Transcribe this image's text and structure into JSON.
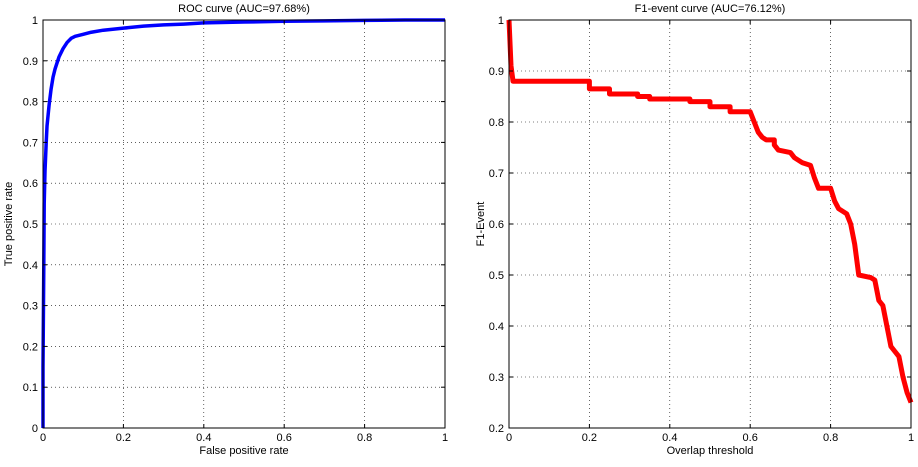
{
  "chart_data": [
    {
      "type": "line",
      "title": "ROC curve (AUC=97.68%)",
      "xlabel": "False positive rate",
      "ylabel": "True positive rate",
      "xlim": [
        0,
        1
      ],
      "ylim": [
        0,
        1
      ],
      "xticks": [
        0,
        0.2,
        0.4,
        0.6,
        0.8,
        1
      ],
      "xtick_labels": [
        "0",
        "0.2",
        "0.4",
        "0.6",
        "0.8",
        "1"
      ],
      "yticks": [
        0,
        0.1,
        0.2,
        0.3,
        0.4,
        0.5,
        0.6,
        0.7,
        0.8,
        0.9,
        1
      ],
      "ytick_labels": [
        "0",
        "0.1",
        "0.2",
        "0.3",
        "0.4",
        "0.5",
        "0.6",
        "0.7",
        "0.8",
        "0.9",
        "1"
      ],
      "grid": true,
      "series": [
        {
          "color": "#0000ff",
          "x": [
            0,
            0,
            0.002,
            0.003,
            0.005,
            0.008,
            0.01,
            0.015,
            0.02,
            0.025,
            0.03,
            0.04,
            0.05,
            0.06,
            0.07,
            0.08,
            0.1,
            0.12,
            0.15,
            0.2,
            0.25,
            0.3,
            0.35,
            0.4,
            0.5,
            0.6,
            0.7,
            0.8,
            0.9,
            1.0
          ],
          "y": [
            0,
            0.15,
            0.4,
            0.55,
            0.63,
            0.7,
            0.74,
            0.79,
            0.83,
            0.86,
            0.88,
            0.91,
            0.93,
            0.945,
            0.955,
            0.96,
            0.965,
            0.97,
            0.975,
            0.98,
            0.985,
            0.988,
            0.99,
            0.993,
            0.995,
            0.997,
            0.998,
            0.999,
            1.0,
            1.0
          ]
        }
      ]
    },
    {
      "type": "line",
      "title": "F1-event curve (AUC=76.12%)",
      "xlabel": "Overlap threshold",
      "ylabel": "F1-Event",
      "xlim": [
        0,
        1
      ],
      "ylim": [
        0.2,
        1
      ],
      "xticks": [
        0,
        0.2,
        0.4,
        0.6,
        0.8,
        1
      ],
      "xtick_labels": [
        "0",
        "0.2",
        "0.4",
        "0.6",
        "0.8",
        "1"
      ],
      "yticks": [
        0.2,
        0.3,
        0.4,
        0.5,
        0.6,
        0.7,
        0.8,
        0.9,
        1
      ],
      "ytick_labels": [
        "0.2",
        "0.3",
        "0.4",
        "0.5",
        "0.6",
        "0.7",
        "0.8",
        "0.9",
        "1"
      ],
      "grid": true,
      "series": [
        {
          "color": "#ff0000",
          "x": [
            0,
            0.005,
            0.01,
            0.2,
            0.2,
            0.25,
            0.25,
            0.32,
            0.32,
            0.35,
            0.35,
            0.45,
            0.45,
            0.5,
            0.5,
            0.55,
            0.55,
            0.6,
            0.61,
            0.62,
            0.63,
            0.64,
            0.66,
            0.66,
            0.67,
            0.7,
            0.71,
            0.73,
            0.75,
            0.76,
            0.77,
            0.8,
            0.81,
            0.82,
            0.84,
            0.85,
            0.86,
            0.87,
            0.9,
            0.91,
            0.92,
            0.93,
            0.94,
            0.95,
            0.96,
            0.97,
            0.98,
            0.99,
            1.0
          ],
          "y": [
            1.0,
            0.91,
            0.88,
            0.88,
            0.865,
            0.865,
            0.855,
            0.855,
            0.85,
            0.85,
            0.845,
            0.845,
            0.84,
            0.84,
            0.83,
            0.83,
            0.82,
            0.82,
            0.8,
            0.78,
            0.77,
            0.765,
            0.765,
            0.755,
            0.745,
            0.74,
            0.73,
            0.72,
            0.715,
            0.69,
            0.67,
            0.67,
            0.645,
            0.63,
            0.62,
            0.6,
            0.56,
            0.5,
            0.495,
            0.49,
            0.45,
            0.44,
            0.4,
            0.36,
            0.35,
            0.34,
            0.3,
            0.27,
            0.25
          ]
        }
      ]
    }
  ]
}
